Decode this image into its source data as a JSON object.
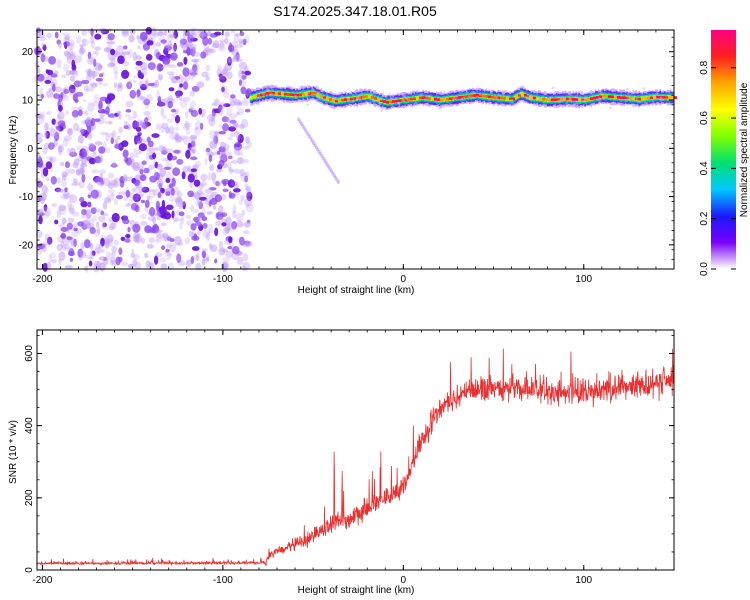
{
  "title": "S174.2025.347.18.01.R05",
  "chart_data": [
    {
      "type": "heatmap",
      "xlabel": "Height of straight line (km)",
      "ylabel": "Frequency (Hz)",
      "xlim": [
        -203,
        150
      ],
      "ylim": [
        -25,
        24.5
      ],
      "xticks": [
        -200,
        -100,
        0,
        100
      ],
      "yticks": [
        -20,
        -10,
        0,
        10,
        20
      ],
      "noise_region_x": [
        -203,
        -85
      ],
      "noise_density": 0.55,
      "ridge": {
        "start_x": -85,
        "end_x": 150,
        "freq_points": [
          [
            -85,
            10.5
          ],
          [
            -75,
            11.5
          ],
          [
            -60,
            11.0
          ],
          [
            -50,
            11.5
          ],
          [
            -45,
            10.5
          ],
          [
            -38,
            9.8
          ],
          [
            -30,
            10.2
          ],
          [
            -20,
            10.8
          ],
          [
            -10,
            9.5
          ],
          [
            0,
            10.0
          ],
          [
            10,
            10.5
          ],
          [
            20,
            10.0
          ],
          [
            30,
            10.5
          ],
          [
            40,
            11.0
          ],
          [
            50,
            10.5
          ],
          [
            60,
            10.2
          ],
          [
            65,
            11.3
          ],
          [
            70,
            10.5
          ],
          [
            80,
            10.0
          ],
          [
            90,
            10.2
          ],
          [
            100,
            10.0
          ],
          [
            110,
            10.8
          ],
          [
            120,
            10.5
          ],
          [
            130,
            10.2
          ],
          [
            140,
            10.6
          ],
          [
            150,
            10.5
          ]
        ]
      },
      "faint_branch": [
        [
          -58,
          6.0
        ],
        [
          -36,
          -7.0
        ]
      ],
      "colorbar": {
        "label": "Normalized spectral amplitude",
        "range": [
          0.0,
          0.95
        ],
        "ticks": [
          0.0,
          0.2,
          0.4,
          0.6,
          0.8
        ],
        "tick_labels": [
          "0.0",
          "0.2",
          "0.4",
          "0.6",
          "0.8"
        ],
        "colors": [
          "#ffffff",
          "#7a00ff",
          "#1a1aff",
          "#00c8ff",
          "#00e070",
          "#7fff00",
          "#ffff00",
          "#ffa500",
          "#ff2020",
          "#ff0080"
        ]
      }
    },
    {
      "type": "line",
      "xlabel": "Height of straight line (km)",
      "ylabel": "SNR (10 * v/v)",
      "xlim": [
        -203,
        150
      ],
      "ylim": [
        0,
        665
      ],
      "xticks": [
        -200,
        -100,
        0,
        100
      ],
      "yticks": [
        0,
        200,
        400,
        600
      ],
      "color": "#e83030",
      "envelope": [
        [
          -203,
          18
        ],
        [
          -80,
          20
        ],
        [
          -76,
          22
        ],
        [
          -73,
          45
        ],
        [
          -65,
          60
        ],
        [
          -55,
          80
        ],
        [
          -45,
          110
        ],
        [
          -35,
          140
        ],
        [
          -25,
          150
        ],
        [
          -15,
          190
        ],
        [
          -5,
          210
        ],
        [
          0,
          230
        ],
        [
          5,
          290
        ],
        [
          10,
          350
        ],
        [
          15,
          400
        ],
        [
          20,
          450
        ],
        [
          30,
          480
        ],
        [
          40,
          500
        ],
        [
          60,
          505
        ],
        [
          80,
          495
        ],
        [
          100,
          490
        ],
        [
          120,
          510
        ],
        [
          140,
          520
        ],
        [
          150,
          525
        ]
      ],
      "noise_amplitude": [
        [
          -203,
          8
        ],
        [
          -80,
          8
        ],
        [
          -73,
          25
        ],
        [
          -40,
          50
        ],
        [
          -20,
          60
        ],
        [
          0,
          60
        ],
        [
          20,
          65
        ],
        [
          60,
          75
        ],
        [
          100,
          80
        ],
        [
          150,
          90
        ]
      ],
      "sample_count": 1800,
      "max_value": 665
    }
  ]
}
